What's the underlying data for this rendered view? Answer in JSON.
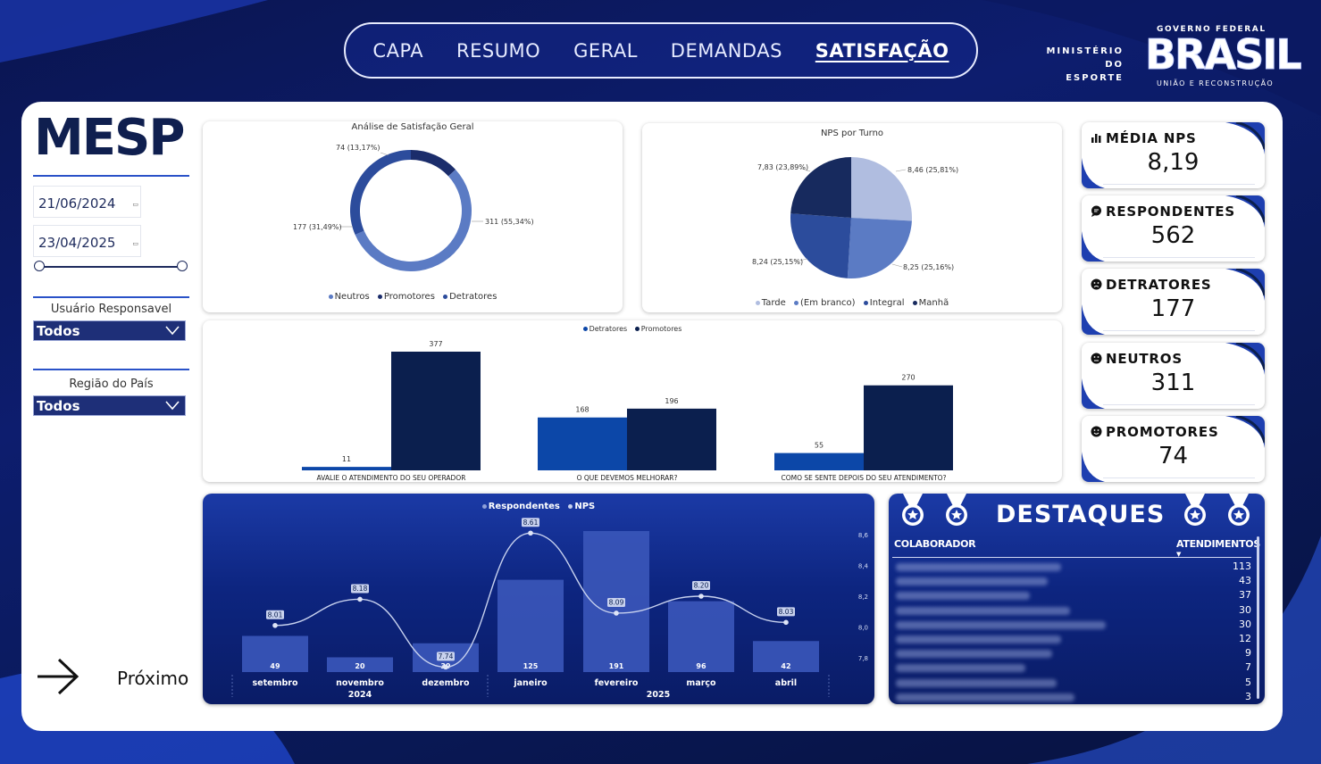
{
  "nav": {
    "tabs": [
      {
        "label": "CAPA",
        "active": false
      },
      {
        "label": "RESUMO",
        "active": false
      },
      {
        "label": "GERAL",
        "active": false
      },
      {
        "label": "DEMANDAS",
        "active": false
      },
      {
        "label": "SATISFAÇÃO",
        "active": true
      }
    ]
  },
  "header": {
    "ministry_line1": "MINISTÉRIO DO",
    "ministry_line2": "ESPORTE",
    "gov_top": "GOVERNO FEDERAL",
    "gov_brand": "BRASIL",
    "gov_sub": "UNIÃO E RECONSTRUÇÃO"
  },
  "sidebar": {
    "title": "MESP",
    "date_start": "21/06/2024",
    "date_end": "23/04/2025",
    "filter_user_label": "Usuário Responsavel",
    "filter_user_value": "Todos",
    "filter_region_label": "Região do País",
    "filter_region_value": "Todos",
    "next_label": "Próximo"
  },
  "colors": {
    "navy": "#0f1f4f",
    "dark": "#0b1f4e",
    "mid": "#2c4c9c",
    "light": "#5b7bc4",
    "pale": "#b0bde0",
    "royal": "#0c47a8",
    "bar_line": "#2f4fa8"
  },
  "kpis": [
    {
      "label": "MÉDIA NPS",
      "value": "8,19",
      "icon": "bar-chart-icon"
    },
    {
      "label": "RESPONDENTES",
      "value": "562",
      "icon": "chat-icon"
    },
    {
      "label": "DETRATORES",
      "value": "177",
      "icon": "sad-face-icon"
    },
    {
      "label": "NEUTROS",
      "value": "311",
      "icon": "neutral-face-icon"
    },
    {
      "label": "PROMOTORES",
      "value": "74",
      "icon": "happy-face-icon"
    }
  ],
  "chart_data": [
    {
      "type": "pie",
      "title": "Análise de Satisfação Geral",
      "categories": [
        "Neutros",
        "Promotores",
        "Detratores"
      ],
      "values": [
        311,
        74,
        177
      ],
      "labels": [
        "311 (55,34%)",
        "74 (13,17%)",
        "177 (31,49%)"
      ]
    },
    {
      "type": "pie",
      "title": "NPS por Turno",
      "categories": [
        "Tarde",
        "(Em branco)",
        "Integral",
        "Manhã"
      ],
      "values": [
        8.46,
        8.25,
        8.24,
        7.83
      ],
      "labels": [
        "8,46 (25,81%)",
        "8,25 (25,16%)",
        "8,24 (25,15%)",
        "7,83 (23,89%)"
      ]
    },
    {
      "type": "bar",
      "title": "",
      "categories": [
        "AVALIE O ATENDIMENTO DO SEU OPERADOR",
        "O QUE DEVEMOS MELHORAR?",
        "COMO SE SENTE DEPOIS DO SEU ATENDIMENTO?"
      ],
      "series": [
        {
          "name": "Detratores",
          "values": [
            11,
            168,
            55
          ]
        },
        {
          "name": "Promotores",
          "values": [
            377,
            196,
            270
          ]
        }
      ],
      "ylim": [
        0,
        400
      ]
    },
    {
      "type": "bar",
      "title": "",
      "categories": [
        "setembro",
        "novembro",
        "dezembro",
        "janeiro",
        "fevereiro",
        "março",
        "abril"
      ],
      "year_labels": [
        "2024",
        "2025"
      ],
      "series": [
        {
          "name": "Respondentes",
          "values": [
            49,
            20,
            39,
            125,
            191,
            96,
            42
          ]
        },
        {
          "name": "NPS",
          "values": [
            8.01,
            8.18,
            7.74,
            8.61,
            8.09,
            8.2,
            8.03
          ]
        }
      ],
      "y2_ticks": [
        "8,6",
        "8,4",
        "8,2",
        "8,0",
        "7,8"
      ],
      "ylim": [
        0,
        200
      ],
      "y2lim": [
        7.7,
        8.7
      ]
    }
  ],
  "destaques": {
    "title": "DESTAQUES",
    "col_name": "COLABORADOR",
    "col_value": "ATENDIMENTOS",
    "rows": [
      "113",
      "43",
      "37",
      "30",
      "30",
      "12",
      "9",
      "7",
      "5",
      "3"
    ]
  }
}
